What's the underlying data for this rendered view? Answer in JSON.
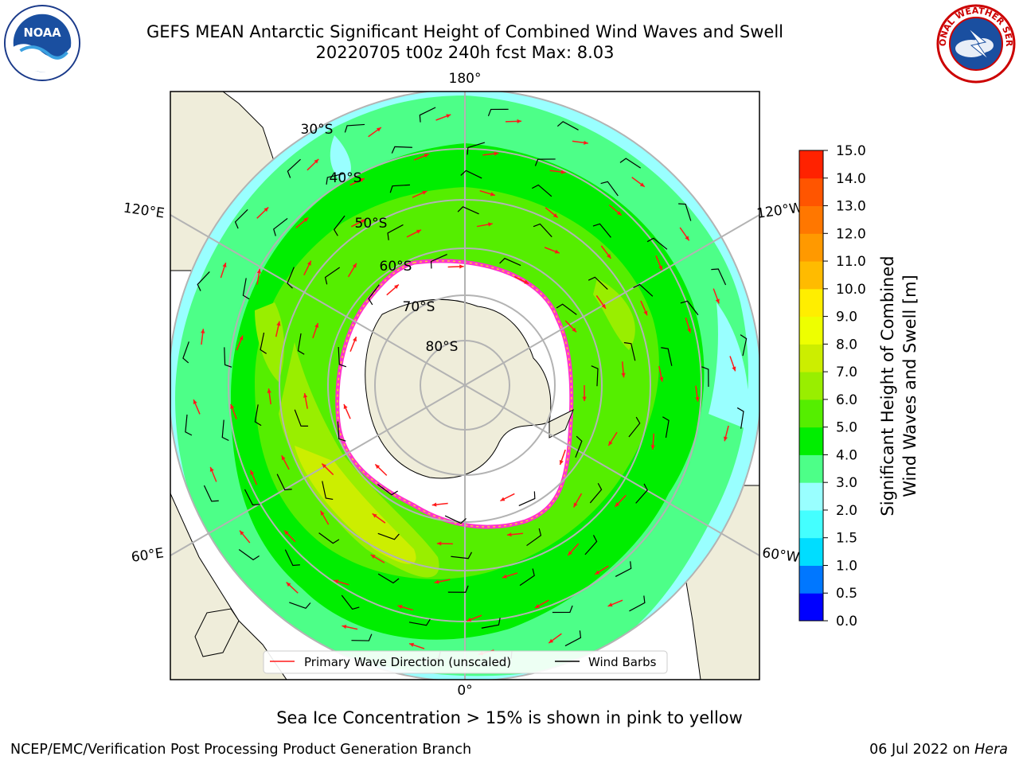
{
  "header": {
    "title_line1": "GEFS MEAN Antarctic Significant Height of Combined Wind Waves and Swell",
    "title_line2": "20220705 t00z 240h fcst   Max: 8.03"
  },
  "logos": {
    "left": {
      "icon": "noaa-logo",
      "text": "NOAA"
    },
    "right": {
      "icon": "nws-logo",
      "text": "NATIONAL WEATHER SERVICE"
    }
  },
  "map": {
    "projection": "south-polar-stereographic",
    "longitude_labels": [
      "180°",
      "120°E",
      "120°W",
      "60°E",
      "60°W",
      "0°"
    ],
    "latitude_labels": [
      "30°S",
      "40°S",
      "50°S",
      "60°S",
      "70°S",
      "80°S"
    ],
    "legend": {
      "wave_direction_label": "Primary Wave Direction (unscaled)",
      "wind_barbs_label": "Wind Barbs"
    },
    "colors": {
      "land": "#efedda",
      "sea_ice": "#ffffff",
      "sea_ice_edge": "#ff33cc",
      "arrows": "#ff1a1a",
      "barbs": "#000000",
      "grid": "#b3b3b3"
    }
  },
  "colorbar": {
    "label_line1": "Significant Height of Combined",
    "label_line2": "Wind Waves and Swell [m]",
    "ticks": [
      "0.0",
      "0.5",
      "1.0",
      "1.5",
      "2.0",
      "3.0",
      "4.0",
      "5.0",
      "6.0",
      "7.0",
      "8.0",
      "9.0",
      "10.0",
      "11.0",
      "12.0",
      "13.0",
      "14.0",
      "15.0"
    ],
    "colors": [
      "#0000ff",
      "#0077ff",
      "#00ddff",
      "#44ffff",
      "#99ffff",
      "#4dff88",
      "#00ee00",
      "#55ee00",
      "#99ee00",
      "#ccee00",
      "#eeff00",
      "#ffee00",
      "#ffbb00",
      "#ff9900",
      "#ff7700",
      "#ff5500",
      "#ff2200"
    ]
  },
  "note": "Sea Ice Concentration > 15% is shown in pink to yellow",
  "footer": {
    "left": "NCEP/EMC/Verification Post Processing Product Generation Branch",
    "right_date": "06 Jul 2022 on ",
    "right_machine": "Hera"
  }
}
